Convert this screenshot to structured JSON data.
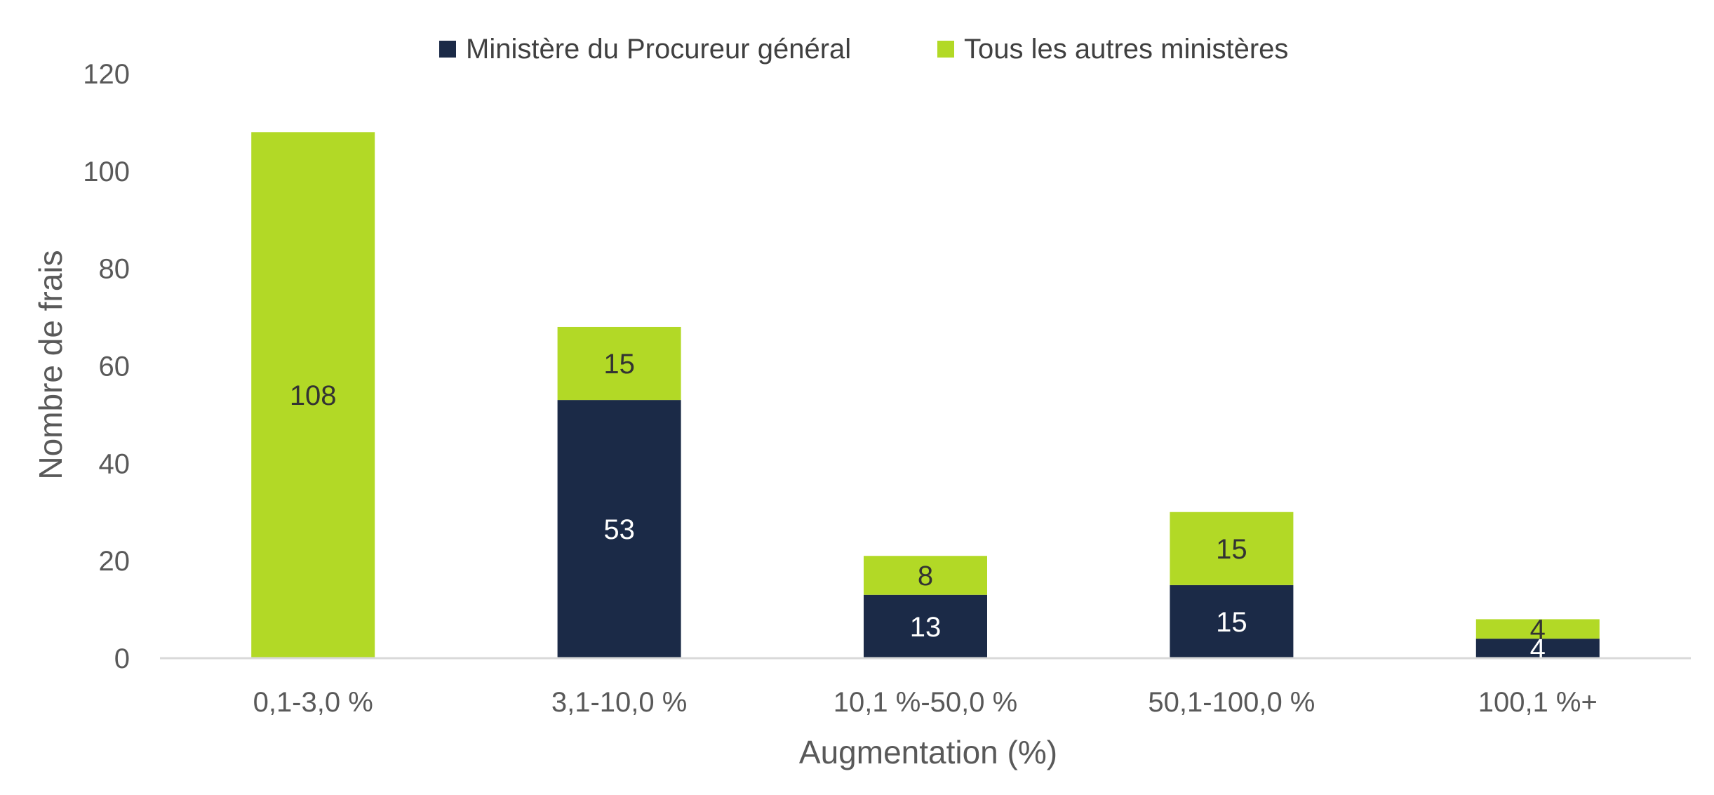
{
  "chart_data": {
    "type": "bar",
    "stacked": true,
    "categories": [
      "0,1-3,0 %",
      "3,1-10,0 %",
      "10,1 %-50,0 %",
      "50,1-100,0 %",
      "100,1 %+"
    ],
    "series": [
      {
        "name": "Ministère du Procureur général",
        "color": "#1b2a47",
        "label_color": "#ffffff",
        "values": [
          0,
          53,
          13,
          15,
          4
        ]
      },
      {
        "name": "Tous les autres ministères",
        "color": "#b2d926",
        "label_color": "#333333",
        "values": [
          108,
          15,
          8,
          15,
          4
        ]
      }
    ],
    "xlabel": "Augmentation (%)",
    "ylabel": "Nombre de frais",
    "ylim": [
      0,
      120
    ],
    "yticks": [
      "0",
      "20",
      "40",
      "60",
      "80",
      "100",
      "120"
    ],
    "grid": false,
    "legend_position": "top-center",
    "axis_color": "#d9d9d9"
  }
}
